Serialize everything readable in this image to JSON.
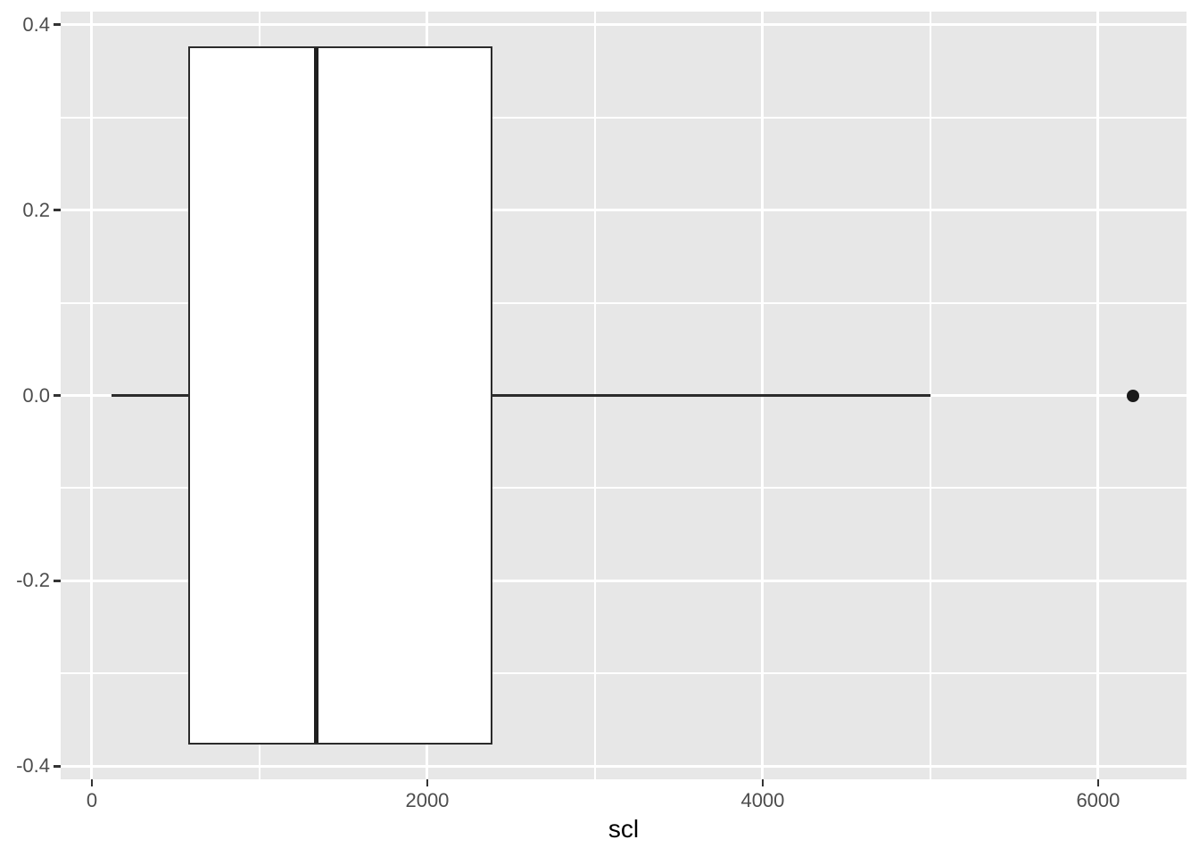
{
  "chart_data": {
    "type": "boxplot",
    "orientation": "horizontal",
    "title": "",
    "xlabel": "scl",
    "ylabel": "",
    "xlim": [
      -186,
      6527
    ],
    "ylim": [
      -0.414,
      0.414
    ],
    "grid": "major-and-minor",
    "legend_position": "none",
    "x_ticks": [
      {
        "value": 0,
        "label": "0"
      },
      {
        "value": 2000,
        "label": "2000"
      },
      {
        "value": 4000,
        "label": "4000"
      },
      {
        "value": 6000,
        "label": "6000"
      }
    ],
    "x_minor_ticks": [
      1000,
      3000,
      5000
    ],
    "y_ticks": [
      {
        "value": 0.4,
        "label": "0.4"
      },
      {
        "value": 0.2,
        "label": "0.2"
      },
      {
        "value": 0.0,
        "label": "0.0"
      },
      {
        "value": -0.2,
        "label": "-0.2"
      },
      {
        "value": -0.4,
        "label": "-0.4"
      }
    ],
    "y_minor_ticks": [
      0.3,
      0.1,
      -0.1,
      -0.3
    ],
    "series": [
      {
        "name": "scl",
        "y_center": 0,
        "box_half_width": 0.375,
        "whisker_min": 117,
        "q1": 582,
        "median": 1340,
        "q3": 2380,
        "whisker_max": 5000,
        "outliers": [
          6210
        ]
      }
    ],
    "colors": {
      "panel_bg": "#E7E7E7",
      "grid": "#FFFFFF",
      "box_stroke": "#2B2B2B",
      "box_fill": "#FFFFFF",
      "median": "#1F1F1F",
      "whisker": "#2B2B2B",
      "outlier_point": "#1A1A1A",
      "tick_mark": "#333333",
      "tick_label": "#4D4D4D",
      "axis_title": "#000000",
      "figure_bg": "#FFFFFF"
    }
  }
}
